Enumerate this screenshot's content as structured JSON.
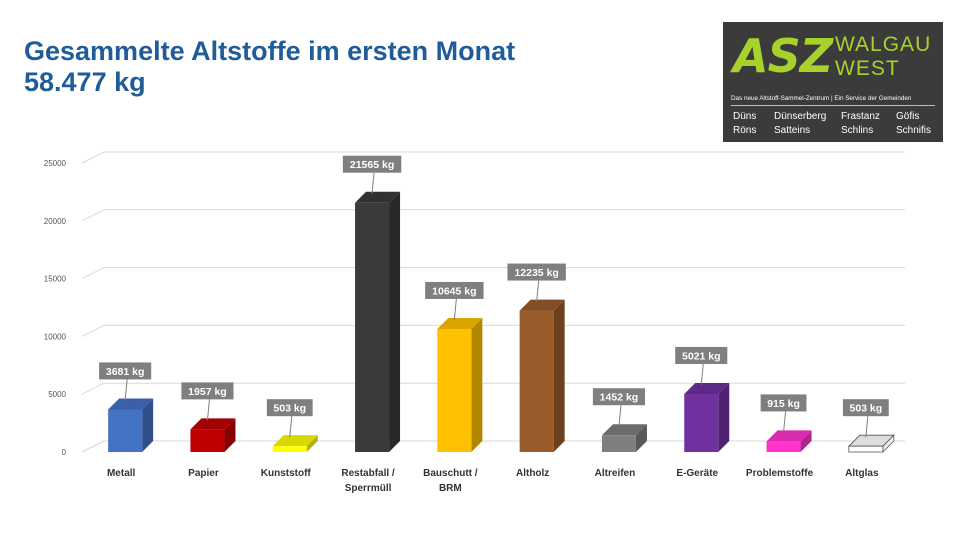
{
  "header": {
    "title_line1": "Gesammelte Altstoffe im ersten Monat",
    "title_line2": "58.477 kg"
  },
  "logo": {
    "mark": "ASZ",
    "name_line1": "WALGAU",
    "name_line2": "WEST",
    "slogan": "Das neue Altstoff-Sammel-Zentrum | Ein Service der Gemeinden",
    "towns": [
      "Düns",
      "Dünserberg",
      "Frastanz",
      "Göfis",
      "Röns",
      "Satteins",
      "Schlins",
      "Schnifis"
    ],
    "colors": {
      "background": "#3b3b3b",
      "accent": "#a9d12b"
    }
  },
  "chart_data": {
    "type": "bar",
    "categories": [
      "Metall",
      "Papier",
      "Kunststoff",
      "Restabfall / Sperrmüll",
      "Bauschutt / BRM",
      "Altholz",
      "Altreifen",
      "E-Geräte",
      "Problemstoffe",
      "Altglas"
    ],
    "category_lines": [
      [
        "Metall"
      ],
      [
        "Papier"
      ],
      [
        "Kunststoff"
      ],
      [
        "Restabfall /",
        "Sperrmüll"
      ],
      [
        "Bauschutt /",
        "BRM"
      ],
      [
        "Altholz"
      ],
      [
        "Altreifen"
      ],
      [
        "E-Geräte"
      ],
      [
        "Problemstoffe"
      ],
      [
        "Altglas"
      ]
    ],
    "values": [
      3681,
      1957,
      503,
      21565,
      10645,
      12235,
      1452,
      5021,
      915,
      503
    ],
    "data_labels": [
      "3681 kg",
      "1957 kg",
      "503 kg",
      "21565 kg",
      "10645 kg",
      "12235 kg",
      "1452 kg",
      "5021 kg",
      "915 kg",
      "503 kg"
    ],
    "colors": [
      "#4472c4",
      "#c00000",
      "#ffff00",
      "#3a3a3a",
      "#ffc000",
      "#9a5b2b",
      "#7f7f7f",
      "#7030a0",
      "#ff33cc",
      "#ffffff"
    ],
    "yticks": [
      0,
      5000,
      10000,
      15000,
      20000,
      25000
    ],
    "ylim": [
      0,
      25000
    ],
    "grid": true,
    "legend": "none",
    "style": "3d-column"
  }
}
